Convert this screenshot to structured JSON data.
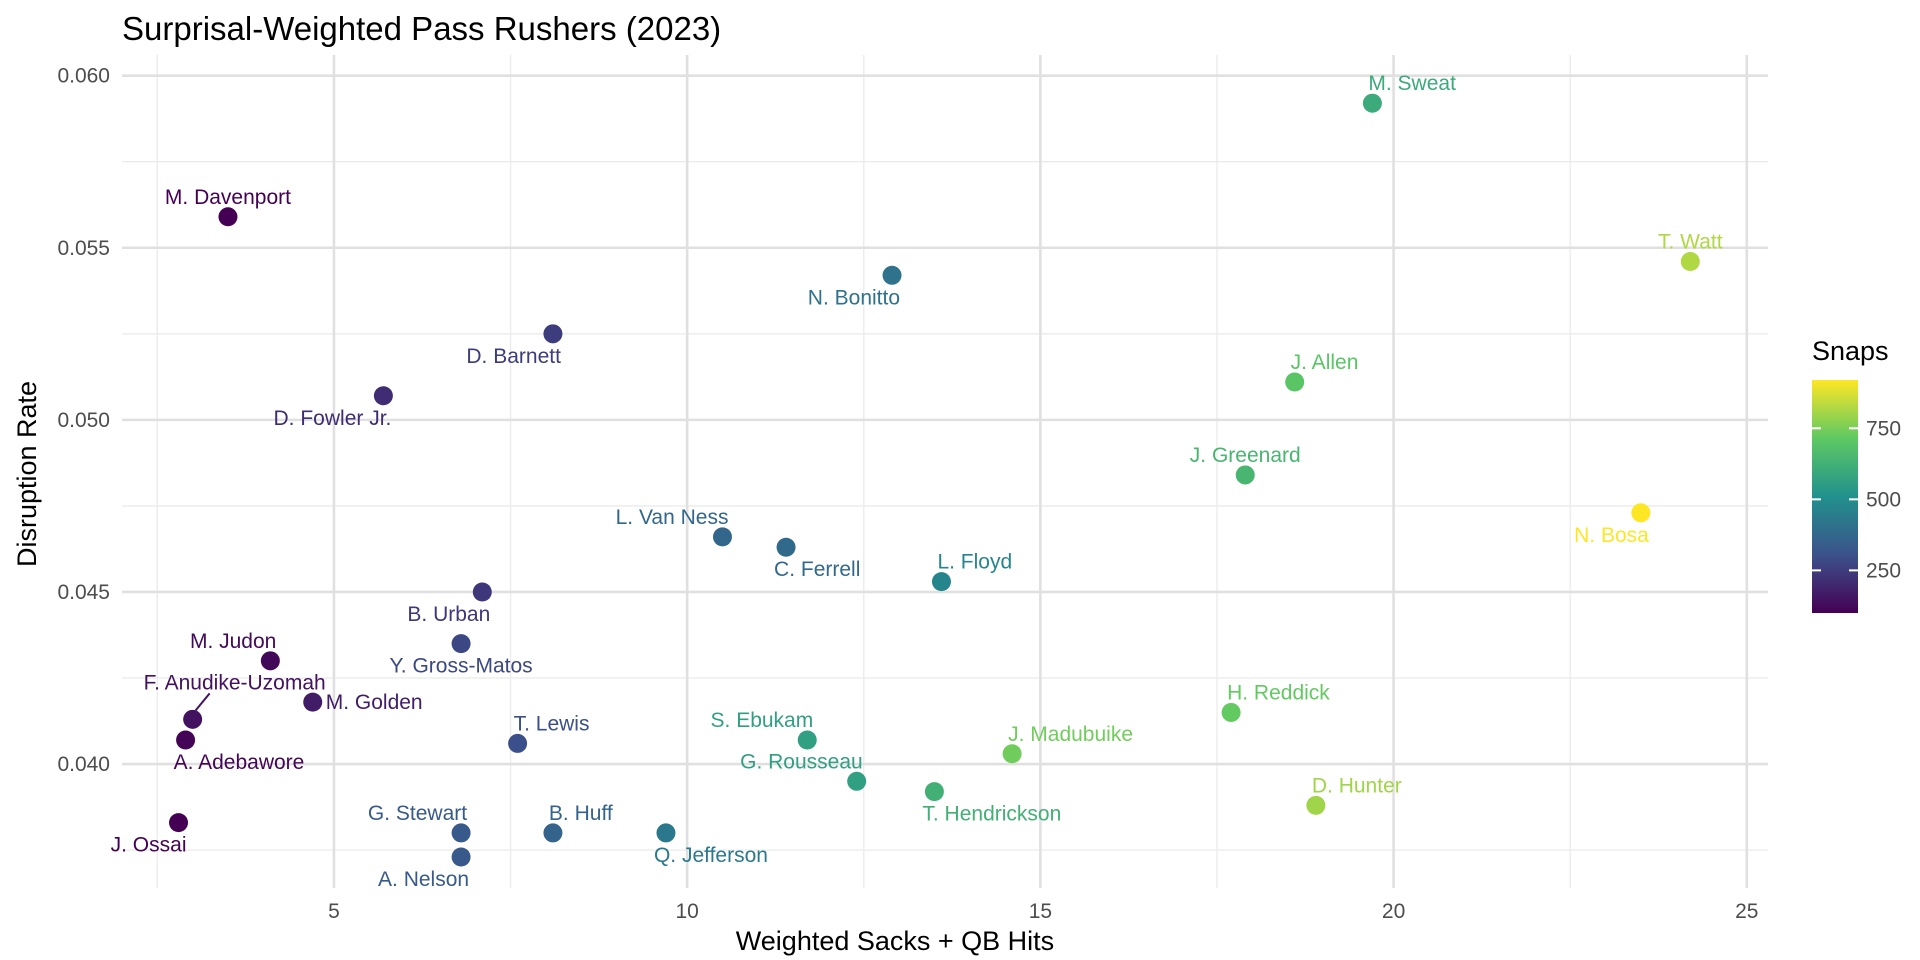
{
  "chart_data": {
    "type": "scatter",
    "title": "Surprisal-Weighted Pass Rushers (2023)",
    "xlabel": "Weighted Sacks + QB Hits",
    "ylabel": "Disruption Rate",
    "xlim": [
      2,
      25.3
    ],
    "ylim": [
      0.0364,
      0.0606
    ],
    "x_ticks": [
      5,
      10,
      15,
      20,
      25
    ],
    "y_ticks": [
      0.04,
      0.045,
      0.05,
      0.055,
      0.06
    ],
    "x_tick_labels": [
      "5",
      "10",
      "15",
      "20",
      "25"
    ],
    "y_tick_labels": [
      "0.040",
      "0.045",
      "0.050",
      "0.055",
      "0.060"
    ],
    "grid": true,
    "legend": {
      "title": "Snaps",
      "placement": "right",
      "min": 100,
      "max": 920,
      "ticks": [
        250,
        500,
        750
      ],
      "tick_labels": [
        "250",
        "500",
        "750"
      ]
    },
    "points": [
      {
        "label": "M. Sweat",
        "x": 19.7,
        "y": 0.0592,
        "snaps": 600,
        "pos": "above-right"
      },
      {
        "label": "M. Davenport",
        "x": 3.5,
        "y": 0.0559,
        "snaps": 100,
        "pos": "above"
      },
      {
        "label": "T. Watt",
        "x": 24.2,
        "y": 0.0546,
        "snaps": 820,
        "pos": "above"
      },
      {
        "label": "N. Bonitto",
        "x": 12.9,
        "y": 0.0542,
        "snaps": 410,
        "pos": "below-left"
      },
      {
        "label": "D. Barnett",
        "x": 8.1,
        "y": 0.0525,
        "snaps": 250,
        "pos": "below-left"
      },
      {
        "label": "J. Allen",
        "x": 18.6,
        "y": 0.0511,
        "snaps": 700,
        "pos": "above-right"
      },
      {
        "label": "D. Fowler Jr.",
        "x": 5.7,
        "y": 0.0507,
        "snaps": 210,
        "pos": "below-left"
      },
      {
        "label": "J. Greenard",
        "x": 17.9,
        "y": 0.0484,
        "snaps": 640,
        "pos": "above"
      },
      {
        "label": "N. Bosa",
        "x": 23.5,
        "y": 0.0473,
        "snaps": 920,
        "pos": "below-left"
      },
      {
        "label": "L. Van Ness",
        "x": 10.5,
        "y": 0.0466,
        "snaps": 370,
        "pos": "above-left"
      },
      {
        "label": "C. Ferrell",
        "x": 11.4,
        "y": 0.0463,
        "snaps": 380,
        "pos": "below-right"
      },
      {
        "label": "L. Floyd",
        "x": 13.6,
        "y": 0.0453,
        "snaps": 470,
        "pos": "above-right"
      },
      {
        "label": "B. Urban",
        "x": 7.1,
        "y": 0.045,
        "snaps": 240,
        "pos": "below-left"
      },
      {
        "label": "Y. Gross-Matos",
        "x": 6.8,
        "y": 0.0435,
        "snaps": 280,
        "pos": "below"
      },
      {
        "label": "M. Judon",
        "x": 4.1,
        "y": 0.043,
        "snaps": 120,
        "pos": "above-left"
      },
      {
        "label": "M. Golden",
        "x": 4.7,
        "y": 0.0418,
        "snaps": 170,
        "pos": "right"
      },
      {
        "label": "H. Reddick",
        "x": 17.7,
        "y": 0.0415,
        "snaps": 720,
        "pos": "above-right"
      },
      {
        "label": "F. Anudike-Uzomah",
        "x": 3.0,
        "y": 0.0413,
        "snaps": 140,
        "pos": "above-leader"
      },
      {
        "label": "S. Ebukam",
        "x": 11.7,
        "y": 0.0407,
        "snaps": 560,
        "pos": "above-left"
      },
      {
        "label": "A. Adebawore",
        "x": 2.9,
        "y": 0.0407,
        "snaps": 110,
        "pos": "below-right"
      },
      {
        "label": "T. Lewis",
        "x": 7.6,
        "y": 0.0406,
        "snaps": 300,
        "pos": "above-right"
      },
      {
        "label": "J. Madubuike",
        "x": 14.6,
        "y": 0.0403,
        "snaps": 740,
        "pos": "above-right"
      },
      {
        "label": "G. Rousseau",
        "x": 12.4,
        "y": 0.0395,
        "snaps": 560,
        "pos": "above-left"
      },
      {
        "label": "T. Hendrickson",
        "x": 13.5,
        "y": 0.0392,
        "snaps": 620,
        "pos": "below-right"
      },
      {
        "label": "D. Hunter",
        "x": 18.9,
        "y": 0.0388,
        "snaps": 800,
        "pos": "above-right"
      },
      {
        "label": "J. Ossai",
        "x": 2.8,
        "y": 0.0383,
        "snaps": 100,
        "pos": "below-left"
      },
      {
        "label": "G. Stewart",
        "x": 6.8,
        "y": 0.038,
        "snaps": 330,
        "pos": "above-left"
      },
      {
        "label": "B. Huff",
        "x": 8.1,
        "y": 0.038,
        "snaps": 360,
        "pos": "above-right"
      },
      {
        "label": "Q. Jefferson",
        "x": 9.7,
        "y": 0.038,
        "snaps": 430,
        "pos": "below-right"
      },
      {
        "label": "A. Nelson",
        "x": 6.8,
        "y": 0.0373,
        "snaps": 330,
        "pos": "below-left"
      }
    ]
  }
}
